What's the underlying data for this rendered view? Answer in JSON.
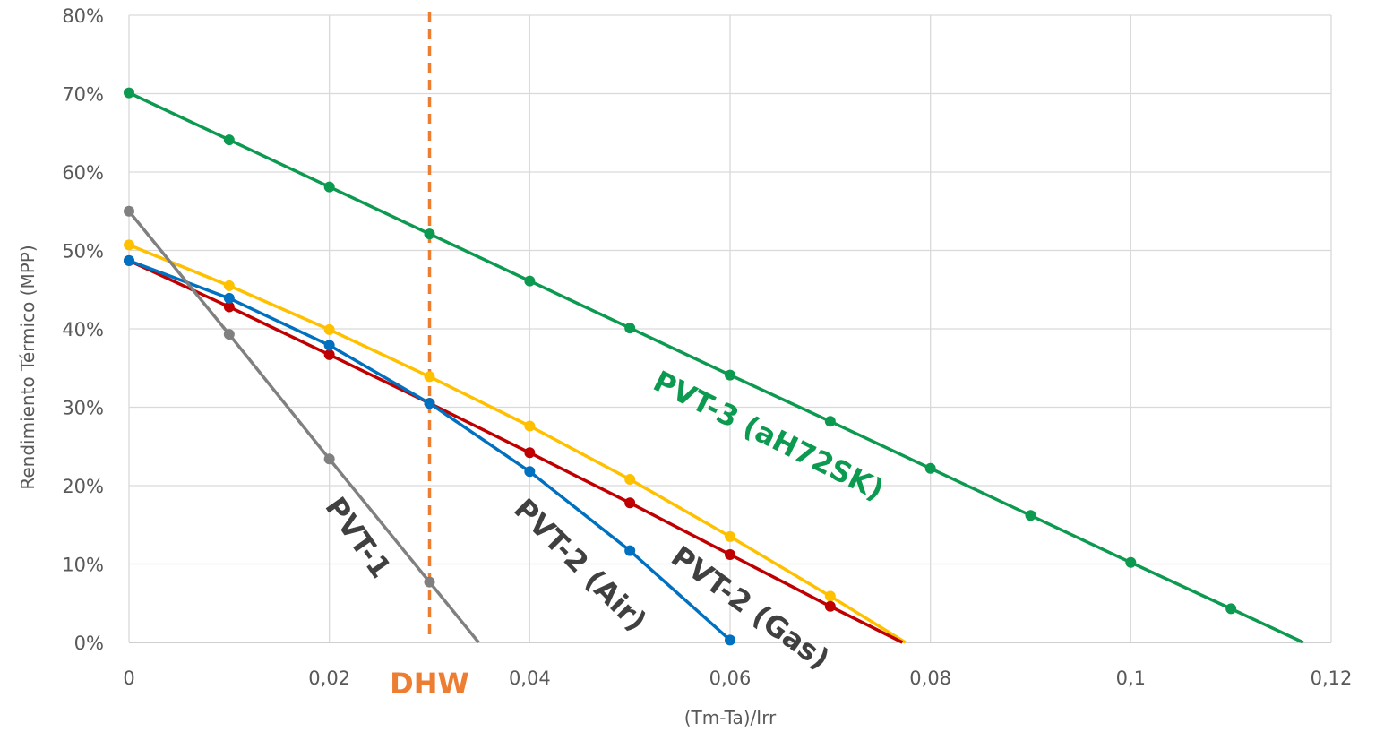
{
  "chart_data": {
    "type": "line",
    "title": "",
    "xlabel": "(Tm-Ta)/Irr",
    "ylabel": "Rendimiento Térmico (MPP)",
    "xlim": [
      0,
      0.12
    ],
    "ylim": [
      0,
      0.8
    ],
    "x_ticks": [
      {
        "value": 0,
        "label": "0"
      },
      {
        "value": 0.02,
        "label": "0,02"
      },
      {
        "value": 0.04,
        "label": "0,04"
      },
      {
        "value": 0.06,
        "label": "0,06"
      },
      {
        "value": 0.08,
        "label": "0,08"
      },
      {
        "value": 0.1,
        "label": "0,1"
      },
      {
        "value": 0.12,
        "label": "0,12"
      }
    ],
    "y_ticks": [
      {
        "value": 0,
        "label": "0%"
      },
      {
        "value": 0.1,
        "label": "10%"
      },
      {
        "value": 0.2,
        "label": "20%"
      },
      {
        "value": 0.3,
        "label": "30%"
      },
      {
        "value": 0.4,
        "label": "40%"
      },
      {
        "value": 0.5,
        "label": "50%"
      },
      {
        "value": 0.6,
        "label": "60%"
      },
      {
        "value": 0.7,
        "label": "70%"
      },
      {
        "value": 0.8,
        "label": "80%"
      }
    ],
    "grid": true,
    "legend": "none",
    "reference_line": {
      "x": 0.03,
      "label": "DHW",
      "color": "#ED7D31"
    },
    "series": [
      {
        "name": "PVT-3 (aH72SK)",
        "color": "#0C9A50",
        "label_color": "#0C9A50",
        "points": [
          [
            0,
            0.701
          ],
          [
            0.01,
            0.641
          ],
          [
            0.02,
            0.581
          ],
          [
            0.03,
            0.521
          ],
          [
            0.04,
            0.461
          ],
          [
            0.05,
            0.401
          ],
          [
            0.06,
            0.341
          ],
          [
            0.07,
            0.282
          ],
          [
            0.08,
            0.222
          ],
          [
            0.09,
            0.162
          ],
          [
            0.1,
            0.102
          ],
          [
            0.11,
            0.043
          ]
        ],
        "line_end": [
          0.1172,
          0
        ]
      },
      {
        "name": "",
        "color": "#FFC000",
        "points": [
          [
            0,
            0.507
          ],
          [
            0.01,
            0.455
          ],
          [
            0.02,
            0.399
          ],
          [
            0.03,
            0.339
          ],
          [
            0.04,
            0.276
          ],
          [
            0.05,
            0.208
          ],
          [
            0.06,
            0.135
          ],
          [
            0.07,
            0.059
          ]
        ],
        "line_end": [
          0.0775,
          0
        ]
      },
      {
        "name": "PVT-2 (Gas)",
        "color": "#C00000",
        "label_color": "#404040",
        "points": [
          [
            0,
            0.487
          ],
          [
            0.01,
            0.428
          ],
          [
            0.02,
            0.367
          ],
          [
            0.03,
            0.305
          ],
          [
            0.04,
            0.242
          ],
          [
            0.05,
            0.178
          ],
          [
            0.06,
            0.112
          ],
          [
            0.07,
            0.046
          ]
        ],
        "line_end": [
          0.0772,
          0
        ]
      },
      {
        "name": "PVT-2 (Air)",
        "color": "#0070C0",
        "label_color": "#404040",
        "points": [
          [
            0,
            0.487
          ],
          [
            0.01,
            0.439
          ],
          [
            0.02,
            0.379
          ],
          [
            0.03,
            0.305
          ],
          [
            0.04,
            0.218
          ],
          [
            0.05,
            0.117
          ],
          [
            0.06,
            0.003
          ]
        ]
      },
      {
        "name": "PVT-1",
        "color": "#808080",
        "label_color": "#404040",
        "points": [
          [
            0,
            0.55
          ],
          [
            0.01,
            0.393
          ],
          [
            0.02,
            0.234
          ],
          [
            0.03,
            0.077
          ]
        ],
        "line_end": [
          0.0349,
          0
        ]
      }
    ]
  }
}
